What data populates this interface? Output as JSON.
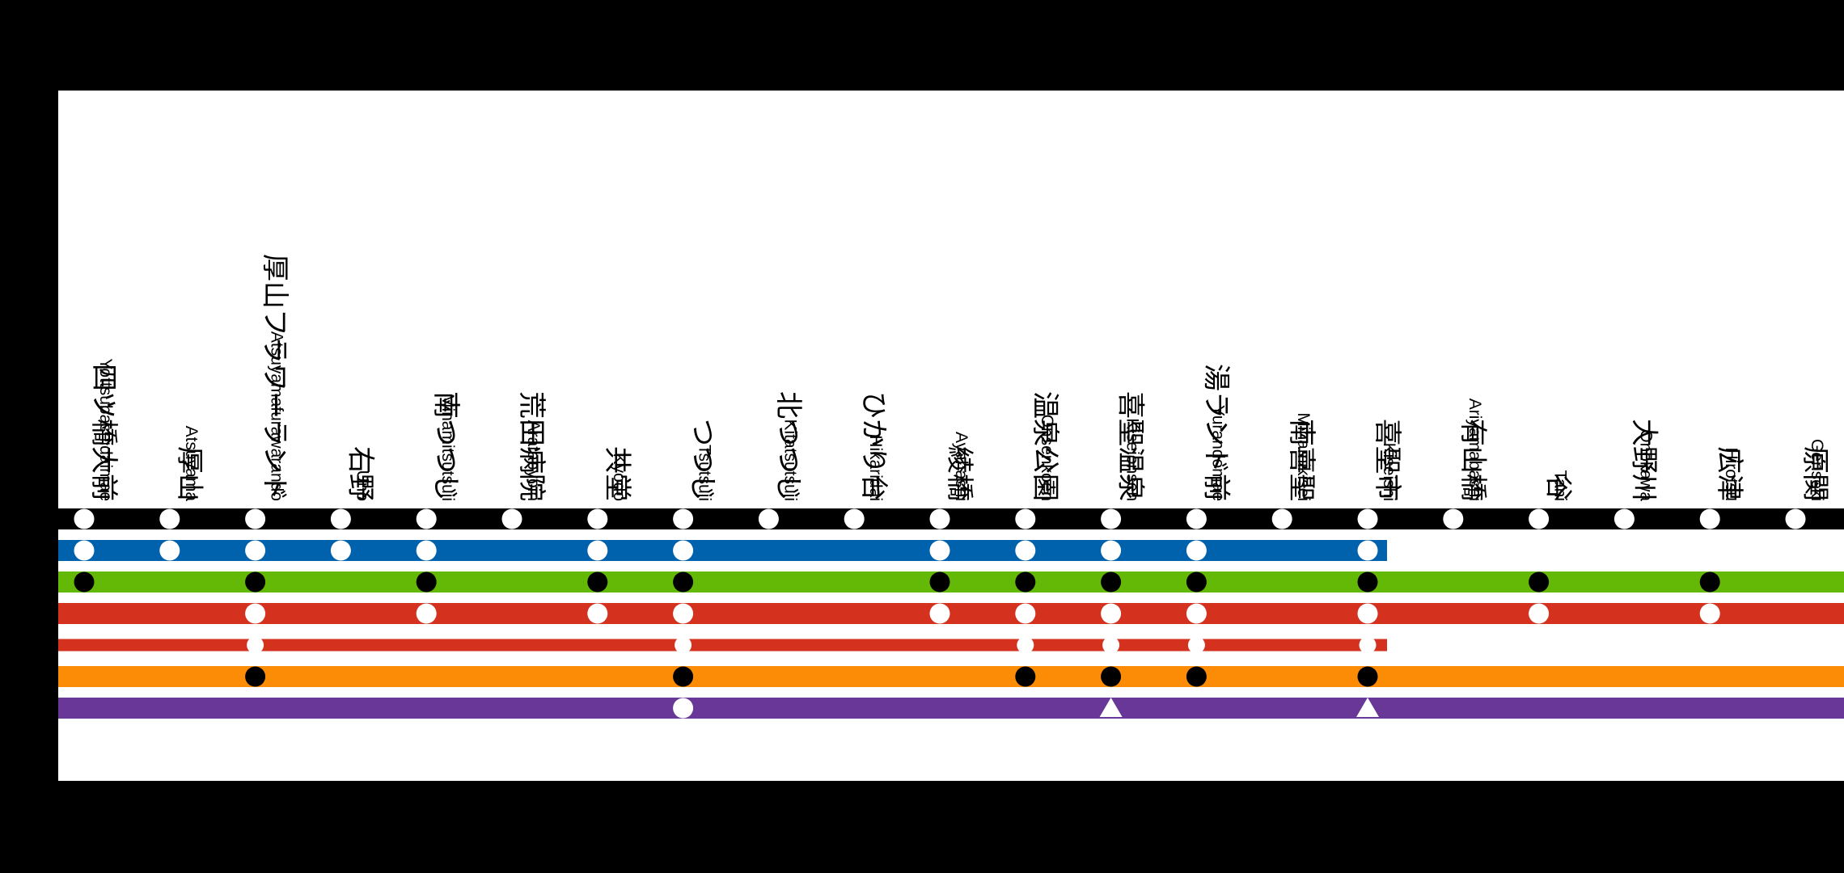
{
  "colors": {
    "background": "#000000",
    "panel": "#ffffff",
    "stop_light": "#ffffff",
    "stop_dark": "#000000"
  },
  "stations": [
    {
      "ja": "四ツ橋大前",
      "romaji": "Yottsubashidaimae"
    },
    {
      "ja": "厚山",
      "romaji": "Atsuyama"
    },
    {
      "ja": "厚山フラワーランド",
      "romaji": "Atsuyamafurawarando"
    },
    {
      "ja": "右野",
      "romaji": "Uno"
    },
    {
      "ja": "南つつじ",
      "romaji": "Minamitsutsuji"
    },
    {
      "ja": "荒田病院",
      "romaji": "Aratabyoin"
    },
    {
      "ja": "共堂",
      "romaji": "Kyodo"
    },
    {
      "ja": "つつじ",
      "romaji": "Tsutsuji"
    },
    {
      "ja": "北つつじ",
      "romaji": "Kitatsutsuji"
    },
    {
      "ja": "ひかり台",
      "romaji": "Hikaridai"
    },
    {
      "ja": "綾橋",
      "romaji": "Ayahashi"
    },
    {
      "ja": "温泉公園",
      "romaji": "Onsenkoen"
    },
    {
      "ja": "喜聖温泉",
      "romaji": "Kiseionsen"
    },
    {
      "ja": "湯ランド前",
      "romaji": "Yurandomae"
    },
    {
      "ja": "南喜聖",
      "romaji": "Minamikisei"
    },
    {
      "ja": "喜聖市",
      "romaji": "Kiseishi"
    },
    {
      "ja": "有山橋",
      "romaji": "Ariyamabashi"
    },
    {
      "ja": "谷",
      "romaji": "Tani"
    },
    {
      "ja": "大野川",
      "romaji": "Onokawa"
    },
    {
      "ja": "広津",
      "romaji": "Hirotsu"
    },
    {
      "ja": "原関",
      "romaji": "Genseki"
    }
  ],
  "lines": [
    {
      "color": "#000000",
      "start": 0,
      "end": "edge",
      "thickness": 26,
      "stop_color": "#ffffff",
      "stops": [
        [
          0,
          "c"
        ],
        [
          1,
          "c"
        ],
        [
          2,
          "c"
        ],
        [
          3,
          "c"
        ],
        [
          4,
          "c"
        ],
        [
          5,
          "c"
        ],
        [
          6,
          "c"
        ],
        [
          7,
          "c"
        ],
        [
          8,
          "c"
        ],
        [
          9,
          "c"
        ],
        [
          10,
          "c"
        ],
        [
          11,
          "c"
        ],
        [
          12,
          "c"
        ],
        [
          13,
          "c"
        ],
        [
          14,
          "c"
        ],
        [
          15,
          "c"
        ],
        [
          16,
          "c"
        ],
        [
          17,
          "c"
        ],
        [
          18,
          "c"
        ],
        [
          19,
          "c"
        ],
        [
          20,
          "c"
        ]
      ]
    },
    {
      "color": "#0061ad",
      "start": 0,
      "end": 15,
      "thickness": 26,
      "stop_color": "#ffffff",
      "stops": [
        [
          0,
          "c"
        ],
        [
          1,
          "c"
        ],
        [
          2,
          "c"
        ],
        [
          3,
          "c"
        ],
        [
          4,
          "c"
        ],
        [
          6,
          "c"
        ],
        [
          7,
          "c"
        ],
        [
          10,
          "c"
        ],
        [
          11,
          "c"
        ],
        [
          12,
          "c"
        ],
        [
          13,
          "c"
        ],
        [
          15,
          "c"
        ]
      ]
    },
    {
      "color": "#63b905",
      "start": 0,
      "end": "edge",
      "thickness": 26,
      "stop_color": "#000000",
      "stops": [
        [
          0,
          "c"
        ],
        [
          2,
          "c"
        ],
        [
          4,
          "c"
        ],
        [
          6,
          "c"
        ],
        [
          7,
          "c"
        ],
        [
          10,
          "c"
        ],
        [
          11,
          "c"
        ],
        [
          12,
          "c"
        ],
        [
          13,
          "c"
        ],
        [
          15,
          "c"
        ],
        [
          17,
          "c"
        ],
        [
          19,
          "c"
        ]
      ]
    },
    {
      "color": "#d4311e",
      "start": 0,
      "end": "edge",
      "thickness": 26,
      "stop_color": "#ffffff",
      "stops": [
        [
          2,
          "c"
        ],
        [
          4,
          "c"
        ],
        [
          6,
          "c"
        ],
        [
          7,
          "c"
        ],
        [
          10,
          "c"
        ],
        [
          11,
          "c"
        ],
        [
          12,
          "c"
        ],
        [
          13,
          "c"
        ],
        [
          15,
          "c"
        ],
        [
          17,
          "c"
        ],
        [
          19,
          "c"
        ]
      ]
    },
    {
      "color": "#d4311e",
      "start": 0,
      "end": 15,
      "thickness": 15,
      "stop_color": "#ffffff",
      "stops": [
        [
          2,
          "c"
        ],
        [
          7,
          "c"
        ],
        [
          11,
          "c"
        ],
        [
          12,
          "c"
        ],
        [
          13,
          "c"
        ],
        [
          15,
          "c"
        ]
      ]
    },
    {
      "color": "#fc8c05",
      "start": 0,
      "end": "edge",
      "thickness": 26,
      "stop_color": "#000000",
      "stops": [
        [
          2,
          "c"
        ],
        [
          7,
          "c"
        ],
        [
          11,
          "c"
        ],
        [
          12,
          "c"
        ],
        [
          13,
          "c"
        ],
        [
          15,
          "c"
        ]
      ]
    },
    {
      "color": "#693797",
      "start": 0,
      "end": "edge",
      "thickness": 26,
      "stop_color": "#ffffff",
      "stops": [
        [
          7,
          "c"
        ],
        [
          12,
          "t"
        ],
        [
          15,
          "t"
        ]
      ]
    }
  ]
}
